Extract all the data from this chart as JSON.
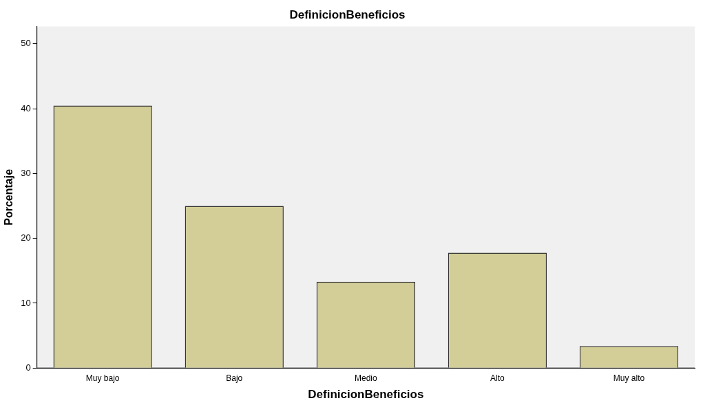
{
  "chart_data": {
    "type": "bar",
    "title": "DefinicionBeneficios",
    "xlabel": "DefinicionBeneficios",
    "ylabel": "Porcentaje",
    "categories": [
      "Muy bajo",
      "Bajo",
      "Medio",
      "Alto",
      "Muy alto"
    ],
    "values": [
      40.5,
      25.0,
      13.3,
      17.8,
      3.4
    ],
    "color": "#d3ce97",
    "ylim": [
      0,
      52.7
    ],
    "yticks": [
      0,
      10,
      20,
      30,
      40,
      50
    ],
    "grid": false,
    "legend": false
  }
}
